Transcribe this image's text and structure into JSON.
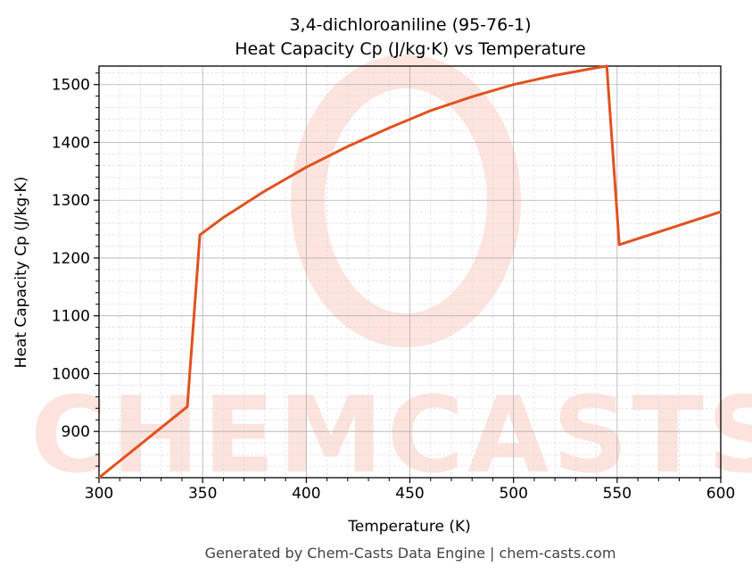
{
  "chart_data": {
    "type": "line",
    "title": "3,4-dichloroaniline (95-76-1)",
    "subtitle": "Heat Capacity Cp (J/kg·K) vs Temperature",
    "xlabel": "Temperature (K)",
    "ylabel": "Heat Capacity Cp (J/kg·K)",
    "xlim": [
      300,
      600
    ],
    "ylim": [
      820,
      1532
    ],
    "xticks": [
      300,
      350,
      400,
      450,
      500,
      550,
      600
    ],
    "yticks": [
      900,
      1000,
      1100,
      1200,
      1300,
      1400,
      1500
    ],
    "grid": true,
    "series": [
      {
        "name": "Cp",
        "color": "#e0521f",
        "x": [
          300,
          342.6,
          348.7,
          360,
          380,
          400,
          420,
          440,
          460,
          480,
          500,
          520,
          540,
          545,
          551,
          600
        ],
        "y": [
          820,
          943,
          1240,
          1270,
          1316,
          1357,
          1393,
          1425,
          1455,
          1479,
          1500,
          1516,
          1529,
          1532,
          1223,
          1280
        ]
      }
    ]
  },
  "watermark": "CHEMCASTS",
  "footer": "Generated by Chem-Casts Data Engine | chem-casts.com"
}
